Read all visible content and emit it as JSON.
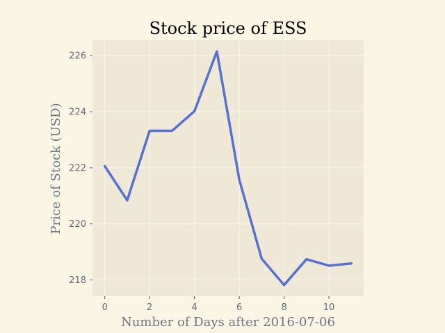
{
  "chart_data": {
    "type": "line",
    "title": "Stock price of ESS",
    "xlabel": "Number of Days after 2016-07-06",
    "ylabel": "Price of Stock (USD)",
    "x": [
      0,
      1,
      2,
      3,
      4,
      5,
      6,
      7,
      8,
      9,
      10,
      11
    ],
    "series": [
      {
        "values": [
          222.06,
          220.84,
          223.32,
          223.32,
          224.02,
          226.15,
          221.58,
          218.76,
          217.82,
          218.74,
          218.51,
          218.59
        ]
      }
    ],
    "xlim": [
      -0.55,
      11.55
    ],
    "ylim": [
      217.42,
      226.55
    ],
    "xticks": [
      0,
      2,
      4,
      6,
      8,
      10
    ],
    "yticks": [
      218,
      220,
      222,
      224,
      226
    ],
    "grid": true,
    "colors": {
      "figure_background": "#fbf5e3",
      "plot_background": "#efe8d7",
      "grid": "#f9f6ef",
      "line": "#5470d1",
      "tick_marks": "#555555"
    }
  }
}
